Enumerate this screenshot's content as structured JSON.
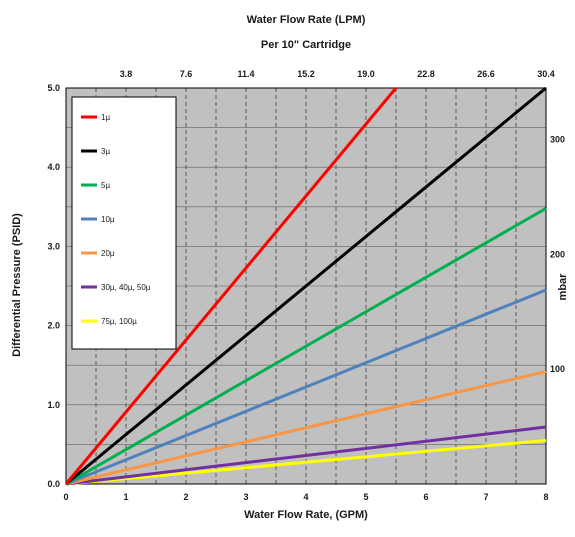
{
  "chart_data": {
    "type": "line",
    "title": "Water Flow Rate (LPM)",
    "subtitle": "Per 10\" Cartridge",
    "xlabel": "Water Flow Rate, (GPM)",
    "ylabel": "Differential Pressure (PSID)",
    "y2label": "mbar",
    "xlim": [
      0,
      8
    ],
    "ylim": [
      0,
      5
    ],
    "x_ticks": [
      "0",
      "1",
      "2",
      "3",
      "4",
      "5",
      "6",
      "7",
      "8"
    ],
    "y_ticks": [
      "0.0",
      "1.0",
      "2.0",
      "3.0",
      "4.0",
      "5.0"
    ],
    "x_ticks_top": [
      "3.8",
      "7.6",
      "11.4",
      "15.2",
      "19.0",
      "22.8",
      "26.6",
      "30.4"
    ],
    "y2_ticks": [
      "100",
      "200",
      "300"
    ],
    "grid": true,
    "legend_position": "top-left",
    "series": [
      {
        "name": "1µ",
        "color": "#ff0000",
        "points": [
          [
            0,
            0
          ],
          [
            5.5,
            5.0
          ]
        ]
      },
      {
        "name": "3µ",
        "color": "#000000",
        "points": [
          [
            0,
            0
          ],
          [
            8,
            5.0
          ]
        ]
      },
      {
        "name": "5µ",
        "color": "#00b050",
        "points": [
          [
            0,
            0
          ],
          [
            8,
            3.48
          ]
        ]
      },
      {
        "name": "10µ",
        "color": "#4f81bd",
        "points": [
          [
            0,
            0
          ],
          [
            8,
            2.45
          ]
        ]
      },
      {
        "name": "20µ",
        "color": "#f79646",
        "points": [
          [
            0,
            0
          ],
          [
            8,
            1.42
          ]
        ]
      },
      {
        "name": "30µ, 40µ, 50µ",
        "color": "#7030a0",
        "points": [
          [
            0,
            0
          ],
          [
            8,
            0.72
          ]
        ]
      },
      {
        "name": "75µ, 100µ",
        "color": "#ffff00",
        "points": [
          [
            0,
            0
          ],
          [
            8,
            0.55
          ]
        ]
      }
    ]
  }
}
